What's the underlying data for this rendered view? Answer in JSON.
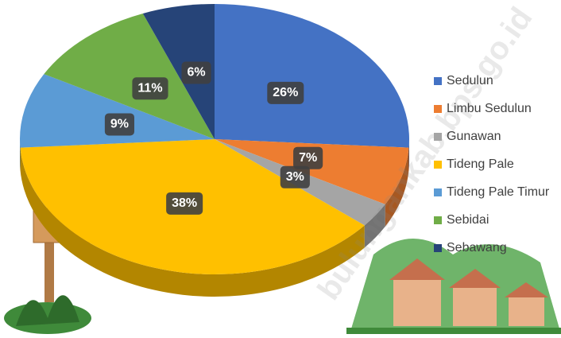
{
  "chart_data": {
    "type": "pie",
    "categories": [
      "Sedulun",
      "Limbu Sedulun",
      "Gunawan",
      "Tideng Pale",
      "Tideng Pale Timur",
      "Sebidai",
      "Sebawang"
    ],
    "values": [
      26,
      7,
      3,
      38,
      9,
      11,
      6
    ],
    "value_labels": [
      "26%",
      "7%",
      "3%",
      "38%",
      "9%",
      "11%",
      "6%"
    ],
    "colors": [
      "#4472c4",
      "#ed7d31",
      "#a5a5a5",
      "#ffc000",
      "#5b9bd5",
      "#70ad47",
      "#264478"
    ],
    "legend": "right",
    "watermark": "bulungankab.bps.go.id"
  }
}
